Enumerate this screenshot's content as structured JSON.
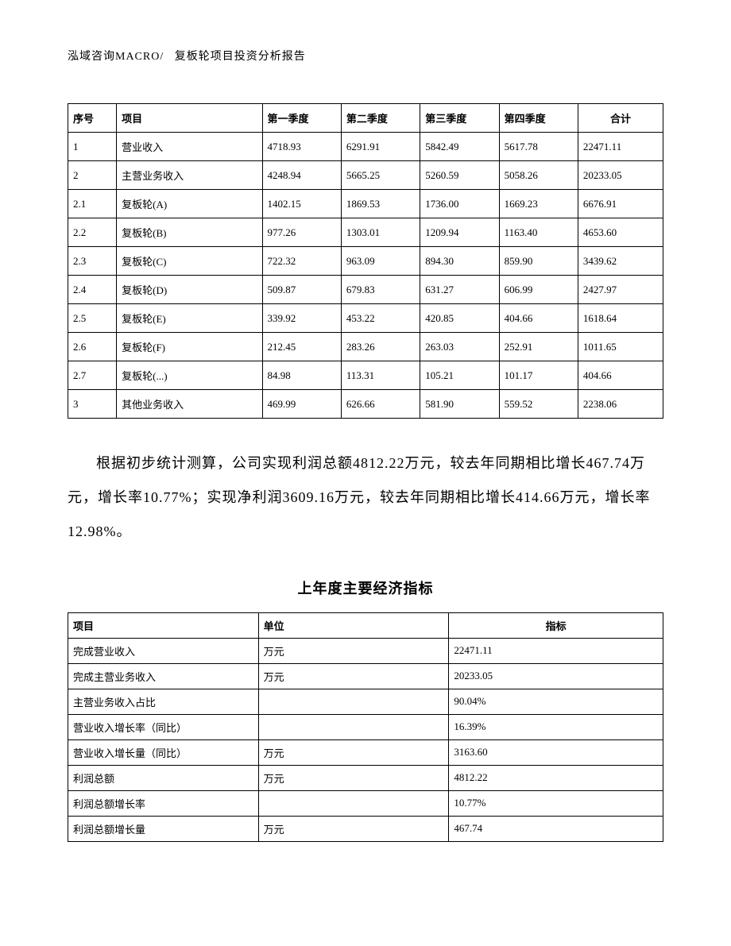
{
  "header": {
    "company": "泓域咨询MACRO/",
    "title": "复板轮项目投资分析报告"
  },
  "table1": {
    "headers": {
      "seq": "序号",
      "item": "项目",
      "q1": "第一季度",
      "q2": "第二季度",
      "q3": "第三季度",
      "q4": "第四季度",
      "total": "合计"
    },
    "rows": [
      {
        "seq": "1",
        "item": "营业收入",
        "q1": "4718.93",
        "q2": "6291.91",
        "q3": "5842.49",
        "q4": "5617.78",
        "total": "22471.11"
      },
      {
        "seq": "2",
        "item": "主营业务收入",
        "q1": "4248.94",
        "q2": "5665.25",
        "q3": "5260.59",
        "q4": "5058.26",
        "total": "20233.05"
      },
      {
        "seq": "2.1",
        "item": "复板轮(A)",
        "q1": "1402.15",
        "q2": "1869.53",
        "q3": "1736.00",
        "q4": "1669.23",
        "total": "6676.91"
      },
      {
        "seq": "2.2",
        "item": "复板轮(B)",
        "q1": "977.26",
        "q2": "1303.01",
        "q3": "1209.94",
        "q4": "1163.40",
        "total": "4653.60"
      },
      {
        "seq": "2.3",
        "item": "复板轮(C)",
        "q1": "722.32",
        "q2": "963.09",
        "q3": "894.30",
        "q4": "859.90",
        "total": "3439.62"
      },
      {
        "seq": "2.4",
        "item": "复板轮(D)",
        "q1": "509.87",
        "q2": "679.83",
        "q3": "631.27",
        "q4": "606.99",
        "total": "2427.97"
      },
      {
        "seq": "2.5",
        "item": "复板轮(E)",
        "q1": "339.92",
        "q2": "453.22",
        "q3": "420.85",
        "q4": "404.66",
        "total": "1618.64"
      },
      {
        "seq": "2.6",
        "item": "复板轮(F)",
        "q1": "212.45",
        "q2": "283.26",
        "q3": "263.03",
        "q4": "252.91",
        "total": "1011.65"
      },
      {
        "seq": "2.7",
        "item": "复板轮(...)",
        "q1": "84.98",
        "q2": "113.31",
        "q3": "105.21",
        "q4": "101.17",
        "total": "404.66"
      },
      {
        "seq": "3",
        "item": "其他业务收入",
        "q1": "469.99",
        "q2": "626.66",
        "q3": "581.90",
        "q4": "559.52",
        "total": "2238.06"
      }
    ]
  },
  "paragraph": "根据初步统计测算，公司实现利润总额4812.22万元，较去年同期相比增长467.74万元，增长率10.77%；实现净利润3609.16万元，较去年同期相比增长414.66万元，增长率12.98%。",
  "subtitle": "上年度主要经济指标",
  "table2": {
    "headers": {
      "item": "项目",
      "unit": "单位",
      "value": "指标"
    },
    "rows": [
      {
        "item": "完成营业收入",
        "unit": "万元",
        "value": "22471.11"
      },
      {
        "item": "完成主营业务收入",
        "unit": "万元",
        "value": "20233.05"
      },
      {
        "item": "主营业务收入占比",
        "unit": "",
        "value": "90.04%"
      },
      {
        "item": "营业收入增长率（同比）",
        "unit": "",
        "value": "16.39%"
      },
      {
        "item": "营业收入增长量（同比）",
        "unit": "万元",
        "value": "3163.60"
      },
      {
        "item": "利润总额",
        "unit": "万元",
        "value": "4812.22"
      },
      {
        "item": "利润总额增长率",
        "unit": "",
        "value": "10.77%"
      },
      {
        "item": "利润总额增长量",
        "unit": "万元",
        "value": "467.74"
      }
    ]
  }
}
